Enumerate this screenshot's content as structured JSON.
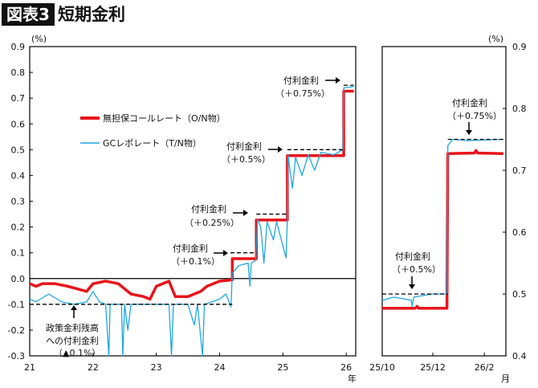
{
  "header": {
    "badge": "図表3",
    "title": "短期金利"
  },
  "chart_data": [
    {
      "type": "line",
      "panel": "left",
      "xlabel": "年",
      "ylabel": "(%)",
      "ylim": [
        -0.3,
        0.9
      ],
      "xlim": [
        21,
        26.15
      ],
      "yticks": [
        "0.9",
        "0.8",
        "0.7",
        "0.6",
        "0.5",
        "0.4",
        "0.3",
        "0.2",
        "0.1",
        "0.0",
        "-0.1",
        "-0.2",
        "-0.3"
      ],
      "xticks": [
        "21",
        "22",
        "23",
        "24",
        "25",
        "26"
      ],
      "legend": {
        "placement": "upper-left",
        "entries": [
          "無担保コールレート（O/N物）",
          "GCレポレート（T/N物）"
        ]
      },
      "series": [
        {
          "name": "無担保コールレート（O/N物）",
          "color": "#e8141b",
          "points": [
            [
              21,
              -0.02
            ],
            [
              21.1,
              -0.03
            ],
            [
              21.2,
              -0.02
            ],
            [
              21.4,
              -0.02
            ],
            [
              21.6,
              -0.03
            ],
            [
              21.75,
              -0.04
            ],
            [
              21.9,
              -0.05
            ],
            [
              22,
              -0.02
            ],
            [
              22.2,
              -0.01
            ],
            [
              22.4,
              -0.02
            ],
            [
              22.5,
              -0.04
            ],
            [
              22.6,
              -0.06
            ],
            [
              22.8,
              -0.07
            ],
            [
              22.9,
              -0.08
            ],
            [
              23,
              -0.03
            ],
            [
              23.2,
              -0.01
            ],
            [
              23.3,
              -0.07
            ],
            [
              23.5,
              -0.07
            ],
            [
              23.7,
              -0.05
            ],
            [
              23.8,
              -0.03
            ],
            [
              24,
              -0.01
            ],
            [
              24.2,
              -0.005
            ],
            [
              24.2,
              0.077
            ],
            [
              24.58,
              0.077
            ],
            [
              24.58,
              0.227
            ],
            [
              25.07,
              0.227
            ],
            [
              25.07,
              0.477
            ],
            [
              25.96,
              0.477
            ],
            [
              25.96,
              0.727
            ],
            [
              26.12,
              0.727
            ]
          ]
        },
        {
          "name": "GCレポレート（T/N物）",
          "color": "#1ea7e1",
          "points": [
            [
              21,
              -0.08
            ],
            [
              21.1,
              -0.09
            ],
            [
              21.3,
              -0.06
            ],
            [
              21.5,
              -0.09
            ],
            [
              21.7,
              -0.1
            ],
            [
              21.9,
              -0.09
            ],
            [
              22,
              -0.05
            ],
            [
              22.1,
              -0.09
            ],
            [
              22.2,
              -0.1
            ],
            [
              22.25,
              -0.3
            ],
            [
              22.27,
              -0.1
            ],
            [
              22.45,
              -0.1
            ],
            [
              22.47,
              -0.3
            ],
            [
              22.5,
              -0.1
            ],
            [
              22.55,
              -0.2
            ],
            [
              22.6,
              -0.1
            ],
            [
              23,
              -0.1
            ],
            [
              23.2,
              -0.1
            ],
            [
              23.24,
              -0.3
            ],
            [
              23.27,
              -0.1
            ],
            [
              23.5,
              -0.1
            ],
            [
              23.6,
              -0.18
            ],
            [
              23.65,
              -0.1
            ],
            [
              23.73,
              -0.3
            ],
            [
              23.76,
              -0.1
            ],
            [
              24,
              -0.08
            ],
            [
              24.1,
              -0.06
            ],
            [
              24.18,
              -0.11
            ],
            [
              24.2,
              0.02
            ],
            [
              24.3,
              0.05
            ],
            [
              24.45,
              0.06
            ],
            [
              24.48,
              -0.03
            ],
            [
              24.5,
              0.06
            ],
            [
              24.57,
              0.07
            ],
            [
              24.6,
              0.23
            ],
            [
              24.65,
              0.2
            ],
            [
              24.7,
              0.06
            ],
            [
              24.75,
              0.22
            ],
            [
              24.85,
              0.15
            ],
            [
              24.9,
              0.22
            ],
            [
              25.05,
              0.08
            ],
            [
              25.07,
              0.23
            ],
            [
              25.08,
              0.48
            ],
            [
              25.15,
              0.35
            ],
            [
              25.2,
              0.47
            ],
            [
              25.3,
              0.4
            ],
            [
              25.4,
              0.48
            ],
            [
              25.5,
              0.42
            ],
            [
              25.6,
              0.49
            ],
            [
              25.8,
              0.48
            ],
            [
              25.95,
              0.5
            ],
            [
              25.96,
              0.74
            ],
            [
              26.12,
              0.745
            ]
          ]
        }
      ],
      "reference_lines": [
        {
          "y": -0.1,
          "x": [
            21,
            24.2
          ]
        },
        {
          "y": 0.1,
          "x": [
            24.17,
            24.58
          ]
        },
        {
          "y": 0.25,
          "x": [
            24.58,
            25.07
          ]
        },
        {
          "y": 0.5,
          "x": [
            25.07,
            25.96
          ]
        },
        {
          "y": 0.75,
          "x": [
            25.96,
            26.12
          ]
        }
      ],
      "annotations": [
        "付利金利",
        "（＋0.75%）",
        "付利金利",
        "（＋0.5%）",
        "付利金利",
        "（＋0.25%）",
        "付利金利",
        "（＋0.1%）",
        "政策金利残高",
        "への付利金利",
        "（▲0.1%）"
      ]
    },
    {
      "type": "line",
      "panel": "right",
      "xlabel": "月",
      "ylabel": "(%)",
      "ylim": [
        0.4,
        0.9
      ],
      "xlim": [
        "2025-10-01",
        "2026-02-27"
      ],
      "yticks": [
        "0.9",
        "0.8",
        "0.7",
        "0.6",
        "0.5",
        "0.4"
      ],
      "xticks": [
        {
          "label": "25/10",
          "date": "2025-10-01"
        },
        {
          "label": "25/12",
          "date": "2025-12-01"
        },
        {
          "label": "26/2",
          "date": "2026-02-01"
        }
      ],
      "series": [
        {
          "name": "無担保コールレート（O/N物）",
          "color": "#e8141b",
          "points": [
            [
              "2025-10-01",
              0.477
            ],
            [
              "2025-11-10",
              0.477
            ],
            [
              "2025-11-12",
              0.48
            ],
            [
              "2025-11-14",
              0.477
            ],
            [
              "2025-12-18",
              0.477
            ],
            [
              "2025-12-19",
              0.727
            ],
            [
              "2026-01-20",
              0.728
            ],
            [
              "2026-01-22",
              0.732
            ],
            [
              "2026-01-24",
              0.728
            ],
            [
              "2026-02-24",
              0.727
            ]
          ]
        },
        {
          "name": "GCレポレート（T/N物）",
          "color": "#1ea7e1",
          "points": [
            [
              "2025-10-01",
              0.49
            ],
            [
              "2025-10-15",
              0.495
            ],
            [
              "2025-11-05",
              0.49
            ],
            [
              "2025-11-06",
              0.48
            ],
            [
              "2025-11-08",
              0.495
            ],
            [
              "2025-11-30",
              0.5
            ],
            [
              "2025-12-10",
              0.5
            ],
            [
              "2025-12-18",
              0.5
            ],
            [
              "2025-12-19",
              0.74
            ],
            [
              "2025-12-25",
              0.75
            ],
            [
              "2026-01-10",
              0.748
            ],
            [
              "2026-02-24",
              0.75
            ]
          ]
        }
      ],
      "reference_lines": [
        {
          "y": 0.5,
          "x": [
            "2025-10-01",
            "2025-12-19"
          ]
        },
        {
          "y": 0.75,
          "x": [
            "2025-12-19",
            "2026-02-24"
          ]
        }
      ],
      "annotations": [
        "付利金利",
        "（＋0.75%）",
        "付利金利",
        "（＋0.5%）"
      ]
    }
  ]
}
